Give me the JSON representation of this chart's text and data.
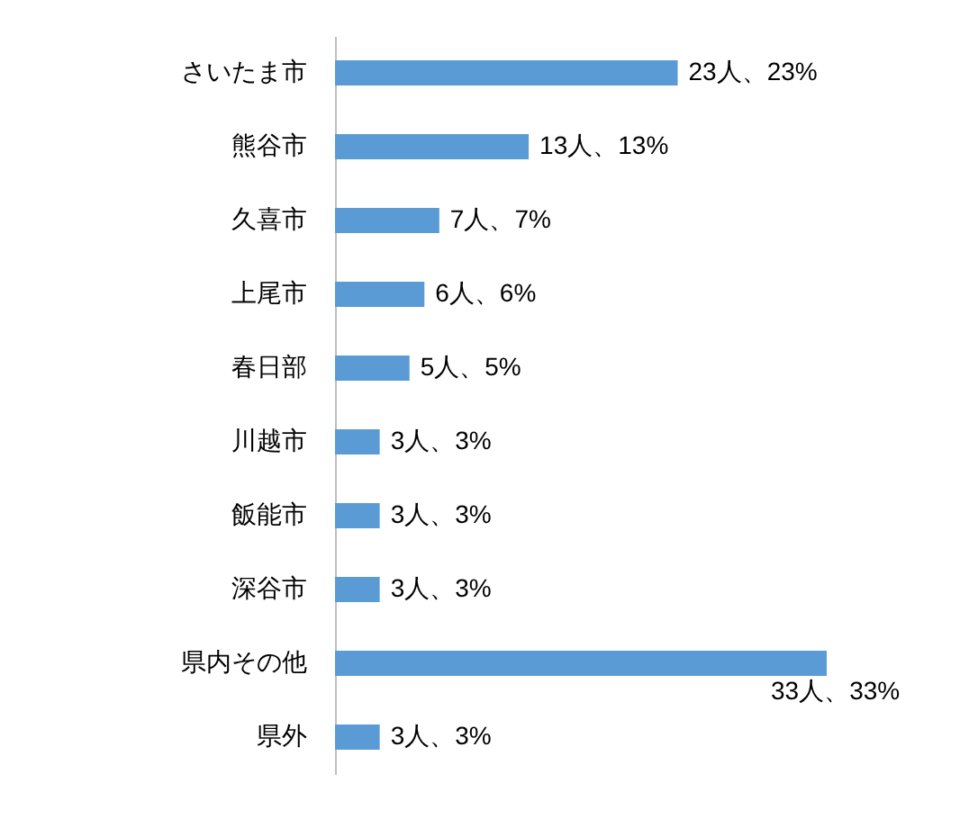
{
  "chart_data": {
    "type": "bar",
    "orientation": "horizontal",
    "categories": [
      "さいたま市",
      "熊谷市",
      "久喜市",
      "上尾市",
      "春日部",
      "川越市",
      "飯能市",
      "深谷市",
      "県内その他",
      "県外"
    ],
    "values": [
      23,
      13,
      7,
      6,
      5,
      3,
      3,
      3,
      33,
      3
    ],
    "color": "#5b9bd5",
    "value_labels": [
      "23人、23%",
      "13人、13%",
      "7人、7%",
      "6人、6%",
      "5人、5%",
      "3人、3%",
      "3人、3%",
      "3人、3%",
      "33人、33%",
      "3人、3%"
    ]
  }
}
